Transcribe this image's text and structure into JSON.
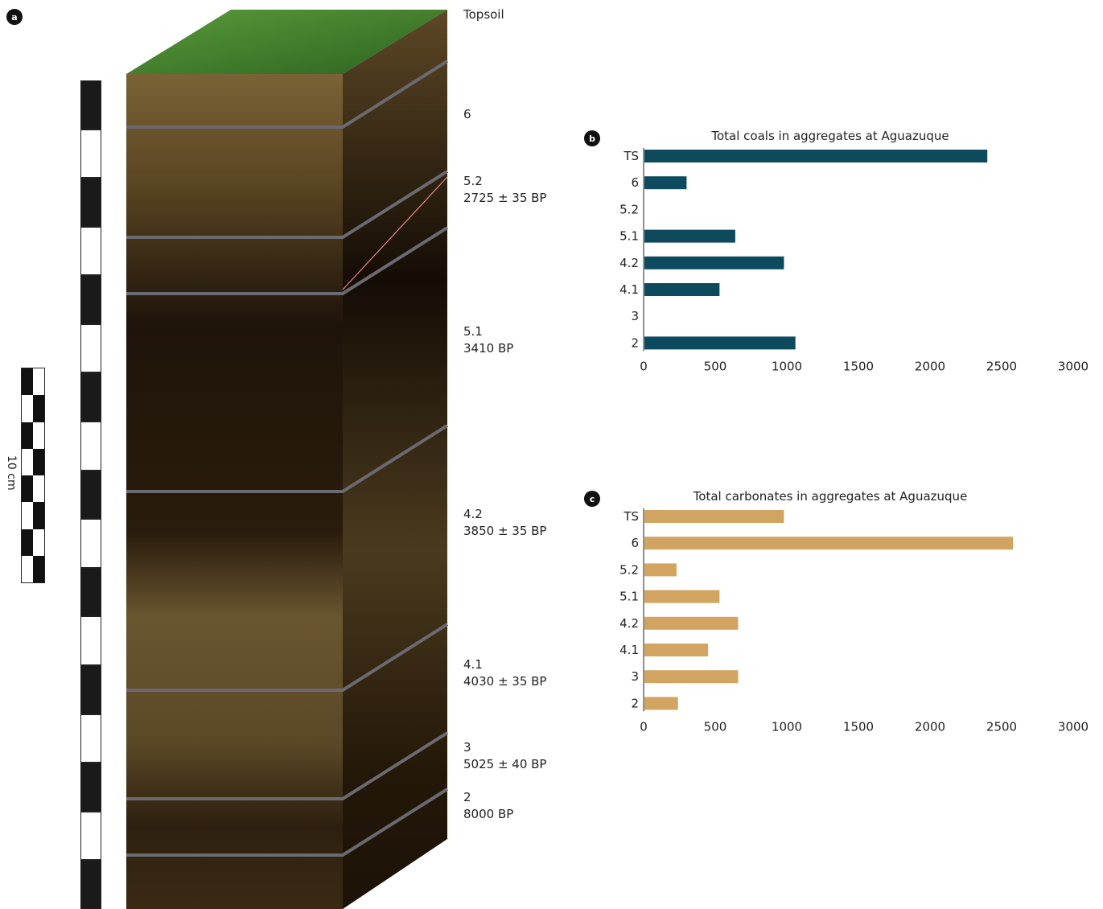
{
  "panels": {
    "a": "a",
    "b": "b",
    "c": "c"
  },
  "scale_label": "10 cm",
  "layers": [
    {
      "name": "Topsoil",
      "date": ""
    },
    {
      "name": "6",
      "date": ""
    },
    {
      "name": "5.2",
      "date": "2725 ± 35 BP"
    },
    {
      "name": "5.1",
      "date": "3410 BP"
    },
    {
      "name": "4.2",
      "date": "3850 ± 35 BP"
    },
    {
      "name": "4.1",
      "date": "4030 ± 35 BP"
    },
    {
      "name": "3",
      "date": "5025 ± 40 BP"
    },
    {
      "name": "2",
      "date": "8000 BP"
    }
  ],
  "colors": {
    "coals": "#0d4a5e",
    "carbonates": "#d1a561",
    "soil_dark": "#2b1d0e",
    "soil_light": "#6f5a32",
    "grass": "#3f7d2a"
  },
  "chart_data": [
    {
      "type": "bar",
      "orientation": "horizontal",
      "title": "Total coals in aggregates at Aguazuque",
      "categories": [
        "TS",
        "6",
        "5.2",
        "5.1",
        "4.2",
        "4.1",
        "3",
        "2"
      ],
      "values": [
        2400,
        300,
        0,
        640,
        980,
        530,
        0,
        1060
      ],
      "xlim": [
        0,
        3000
      ],
      "xticks": [
        0,
        500,
        1000,
        1500,
        2000,
        2500,
        3000
      ],
      "color": "#0d4a5e"
    },
    {
      "type": "bar",
      "orientation": "horizontal",
      "title": "Total carbonates in aggregates at Aguazuque",
      "categories": [
        "TS",
        "6",
        "5.2",
        "5.1",
        "4.2",
        "4.1",
        "3",
        "2"
      ],
      "values": [
        980,
        2580,
        230,
        530,
        660,
        450,
        660,
        240
      ],
      "xlim": [
        0,
        3000
      ],
      "xticks": [
        0,
        500,
        1000,
        1500,
        2000,
        2500,
        3000
      ],
      "color": "#d1a561"
    }
  ]
}
